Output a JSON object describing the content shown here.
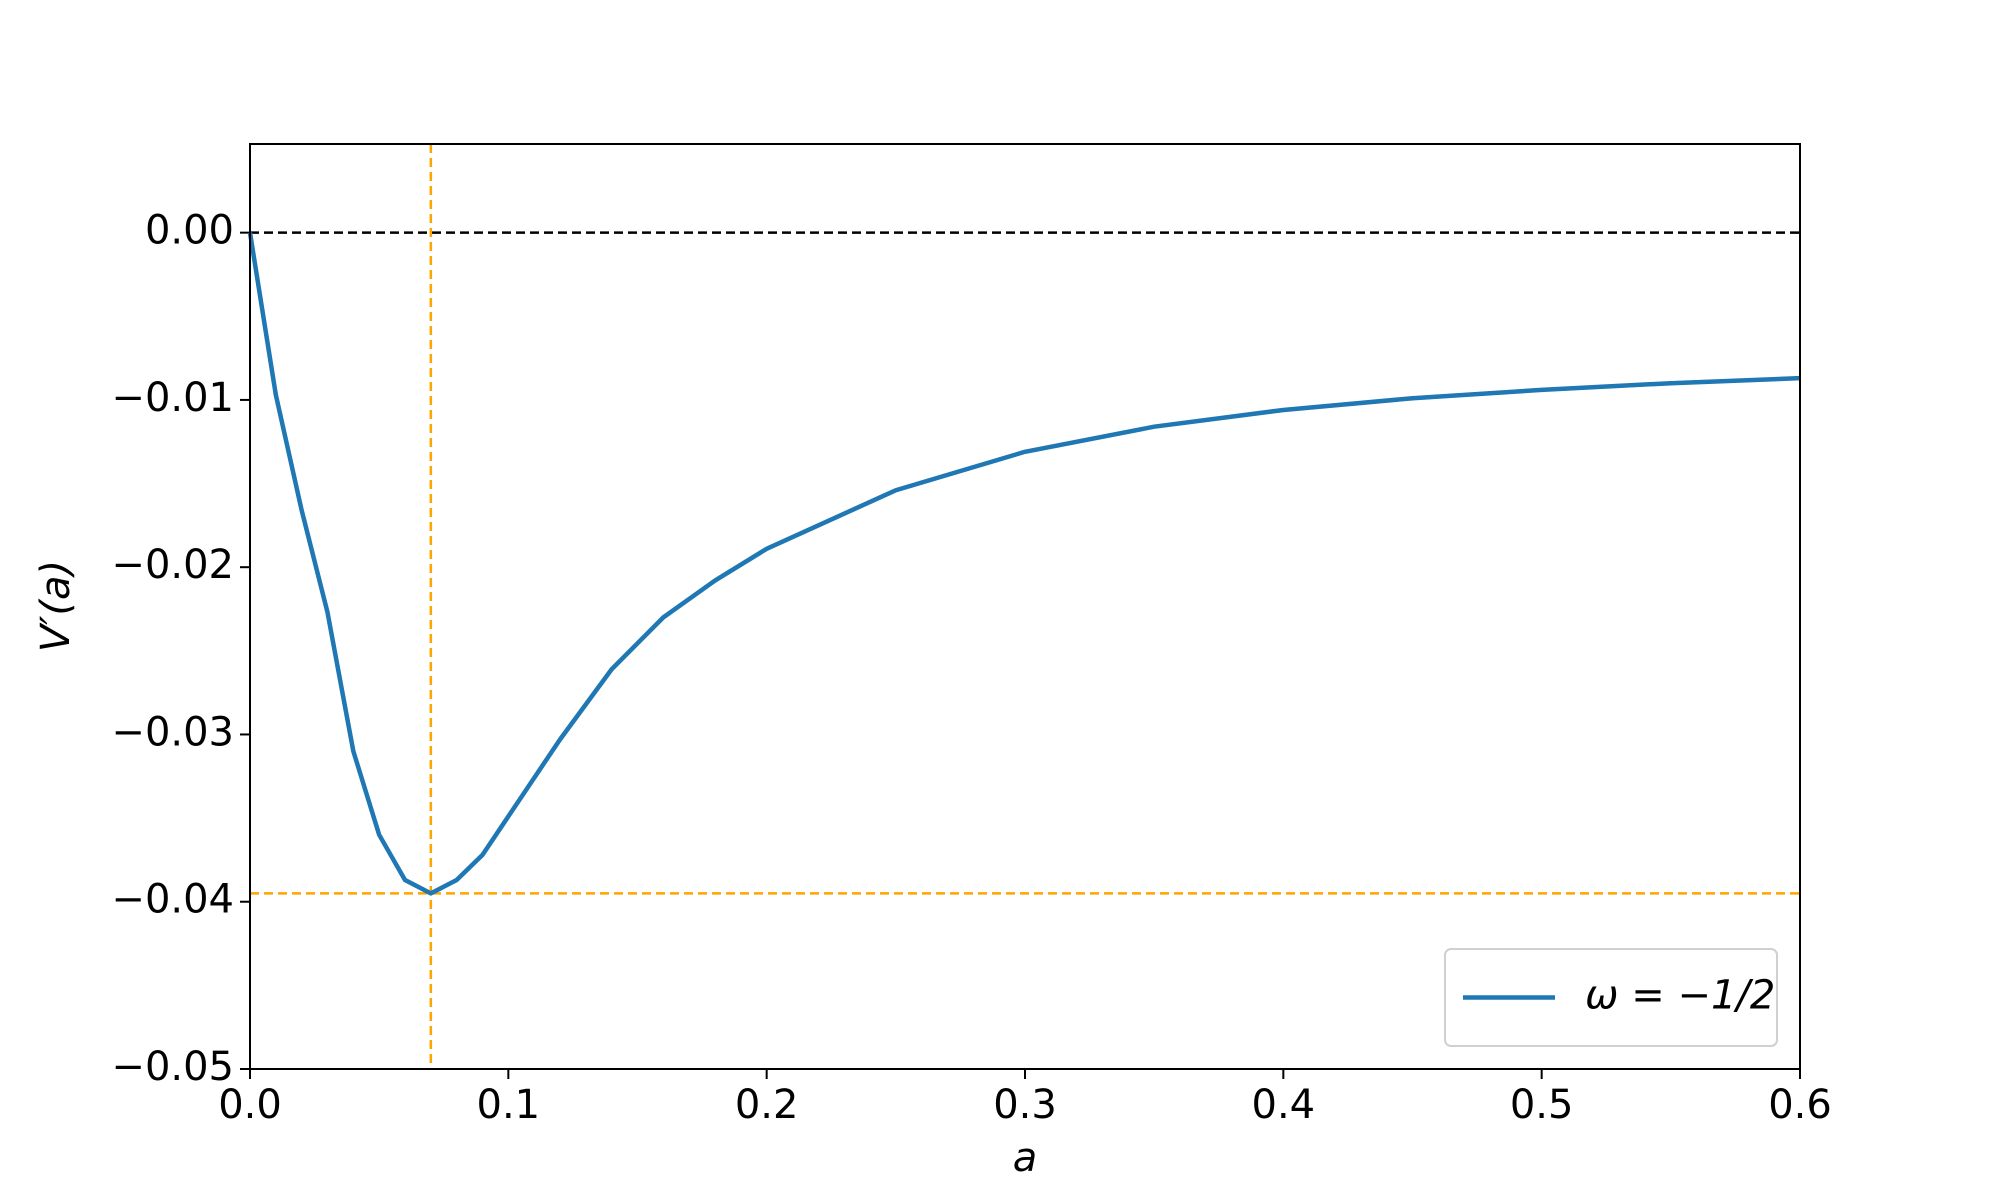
{
  "chart_data": {
    "type": "line",
    "xlabel": "a",
    "ylabel": "V′(a)",
    "x": [
      0,
      0.01,
      0.02,
      0.03,
      0.04,
      0.05,
      0.06,
      0.07,
      0.08,
      0.09,
      0.1,
      0.12,
      0.14,
      0.16,
      0.18,
      0.2,
      0.25,
      0.3,
      0.35,
      0.4,
      0.45,
      0.5,
      0.55,
      0.6
    ],
    "series": [
      {
        "name": "ω = −1/2",
        "color": "#1f77b4",
        "values": [
          0,
          -0.0097,
          -0.0166,
          -0.0227,
          -0.031,
          -0.036,
          -0.0387,
          -0.0395,
          -0.0387,
          -0.0372,
          -0.0349,
          -0.0303,
          -0.0261,
          -0.023,
          -0.0208,
          -0.0189,
          -0.0154,
          -0.0131,
          -0.0116,
          -0.0106,
          -0.0099,
          -0.0094,
          -0.009,
          -0.0087
        ]
      }
    ],
    "xlim": [
      0,
      0.6
    ],
    "ylim": [
      -0.05,
      0.0053
    ],
    "xticks": [
      {
        "value": 0,
        "label": "0.0"
      },
      0.1,
      0.2,
      0.3,
      0.4,
      0.5,
      0.6
    ],
    "yticks": [
      {
        "value": 0,
        "label": "0.00"
      },
      {
        "value": -0.01,
        "label": "−0.01"
      },
      {
        "value": -0.02,
        "label": "−0.02"
      },
      {
        "value": -0.03,
        "label": "−0.03"
      },
      {
        "value": -0.04,
        "label": "−0.04"
      },
      {
        "value": -0.05,
        "label": "−0.05"
      }
    ],
    "reference_lines": [
      {
        "orientation": "horizontal",
        "value": 0,
        "color": "#000000"
      },
      {
        "orientation": "vertical",
        "value": 0.07,
        "color": "#ffa500"
      },
      {
        "orientation": "horizontal",
        "value": -0.0395,
        "color": "#ffa500"
      }
    ],
    "grid": false,
    "legend": "lower right"
  }
}
